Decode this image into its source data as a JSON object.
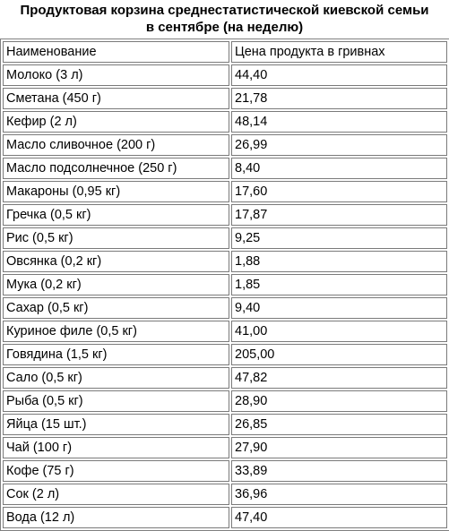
{
  "title": {
    "line1": "Продуктовая корзина среднестатистической киевской семьи",
    "line2": "в сентябре (на неделю)"
  },
  "table": {
    "headers": [
      "Наименование",
      "Цена  продукта в гривнах"
    ],
    "rows": [
      [
        "Молоко (3 л)",
        "44,40"
      ],
      [
        "Сметана (450 г)",
        "21,78"
      ],
      [
        "Кефир (2 л)",
        "48,14"
      ],
      [
        "Масло сливочное (200 г)",
        "26,99"
      ],
      [
        "Масло подсолнечное (250 г)",
        "8,40"
      ],
      [
        "Макароны (0,95 кг)",
        "17,60"
      ],
      [
        "Гречка (0,5 кг)",
        "17,87"
      ],
      [
        "Рис (0,5 кг)",
        "9,25"
      ],
      [
        "Овсянка (0,2 кг)",
        "1,88"
      ],
      [
        "Мука (0,2 кг)",
        "1,85"
      ],
      [
        "Сахар (0,5 кг)",
        "9,40"
      ],
      [
        "Куриное филе (0,5 кг)",
        "41,00"
      ],
      [
        "Говядина (1,5 кг)",
        "205,00"
      ],
      [
        "Сало (0,5 кг)",
        "47,82"
      ],
      [
        "Рыба (0,5 кг)",
        "28,90"
      ],
      [
        "Яйца (15 шт.)",
        "26,85"
      ],
      [
        "Чай (100 г)",
        "27,90"
      ],
      [
        "Кофе (75 г)",
        "33,89"
      ],
      [
        "Сок (2 л)",
        "36,96"
      ],
      [
        "Вода (12 л)",
        "47,40"
      ]
    ]
  }
}
